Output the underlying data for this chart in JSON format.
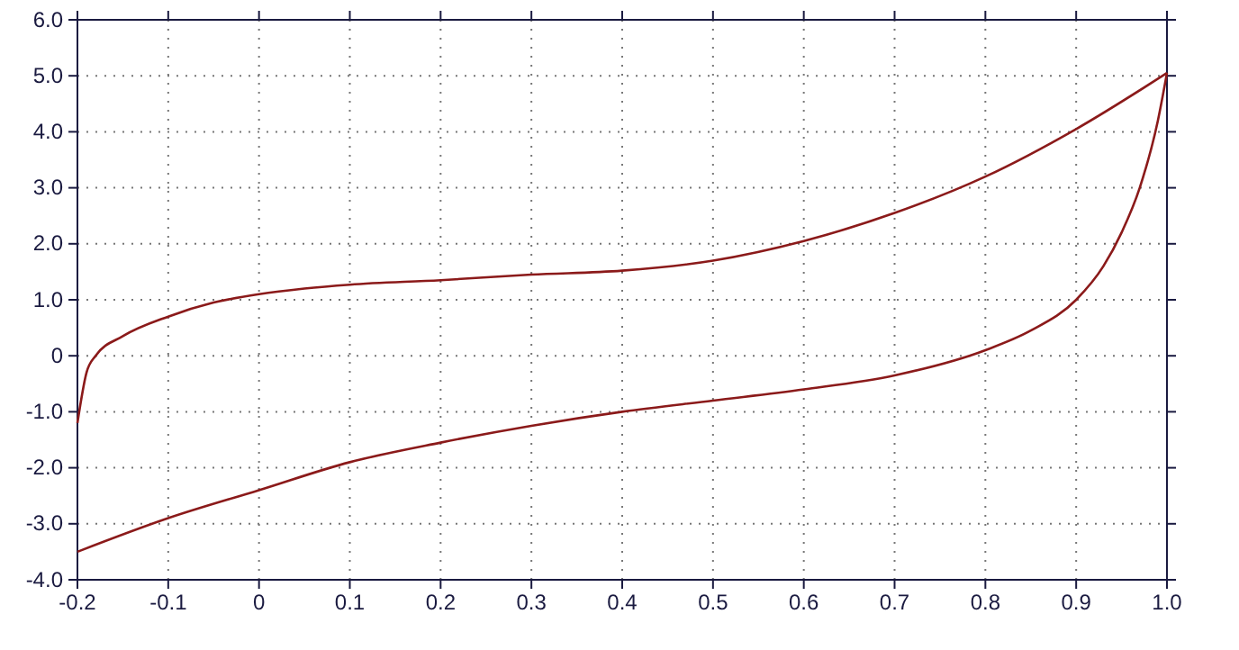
{
  "chart_data": {
    "type": "line",
    "xlim": [
      -0.2,
      1.0
    ],
    "ylim": [
      -4.0,
      6.0
    ],
    "xticks": [
      {
        "value": -0.2,
        "label": "-0.2"
      },
      {
        "value": -0.1,
        "label": "-0.1"
      },
      0,
      {
        "value": 0.1,
        "label": "0.1"
      },
      {
        "value": 0.2,
        "label": "0.2"
      },
      {
        "value": 0.3,
        "label": "0.3"
      },
      {
        "value": 0.4,
        "label": "0.4"
      },
      {
        "value": 0.5,
        "label": "0.5"
      },
      {
        "value": 0.6,
        "label": "0.6"
      },
      {
        "value": 0.7,
        "label": "0.7"
      },
      {
        "value": 0.8,
        "label": "0.8"
      },
      {
        "value": 0.9,
        "label": "0.9"
      },
      {
        "value": 1.0,
        "label": "1.0"
      }
    ],
    "yticks": [
      {
        "value": -4,
        "label": "-4.0"
      },
      {
        "value": -3,
        "label": "-3.0"
      },
      {
        "value": -2,
        "label": "-2.0"
      },
      {
        "value": -1,
        "label": "-1.0"
      },
      0,
      {
        "value": 1,
        "label": "1.0"
      },
      {
        "value": 2,
        "label": "2.0"
      },
      {
        "value": 3,
        "label": "3.0"
      },
      {
        "value": 4,
        "label": "4.0"
      },
      {
        "value": 5,
        "label": "5.0"
      },
      {
        "value": 6,
        "label": "6.0"
      }
    ],
    "grid": true,
    "line_style": "solid",
    "marker": "none",
    "series": [
      {
        "color": "#8b1a1a",
        "x": [
          -0.2,
          -0.19,
          -0.18,
          -0.15,
          -0.1,
          -0.05,
          0,
          0.05,
          0.1,
          0.2,
          0.3,
          0.4,
          0.5,
          0.6,
          0.7,
          0.8,
          0.9,
          1.0
        ],
        "values": [
          -1.2,
          -0.3,
          0.0,
          0.35,
          0.7,
          0.95,
          1.1,
          1.2,
          1.27,
          1.35,
          1.45,
          1.52,
          1.7,
          2.05,
          2.55,
          3.2,
          4.05,
          5.05
        ]
      },
      {
        "color": "#8b1a1a",
        "x": [
          -0.2,
          -0.1,
          0,
          0.1,
          0.2,
          0.3,
          0.4,
          0.5,
          0.6,
          0.7,
          0.8,
          0.85,
          0.9,
          0.93,
          0.95,
          0.97,
          0.99,
          1.0
        ],
        "values": [
          -3.5,
          -2.9,
          -2.4,
          -1.9,
          -1.55,
          -1.25,
          -1.0,
          -0.8,
          -0.6,
          -0.35,
          0.1,
          0.45,
          1.0,
          1.6,
          2.2,
          3.0,
          4.2,
          5.05
        ]
      }
    ]
  }
}
